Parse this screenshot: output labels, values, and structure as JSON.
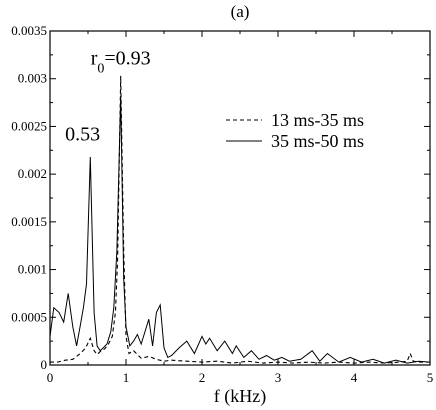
{
  "chart_data": {
    "type": "line",
    "title": "(a)",
    "xlabel": "f (kHz)",
    "ylabel": "",
    "xlim": [
      0,
      5
    ],
    "ylim": [
      0,
      0.0035
    ],
    "grid": false,
    "legend_position": "right",
    "x_ticks": [
      0,
      1,
      2,
      3,
      4,
      5
    ],
    "x_tick_labels": [
      "0",
      "1",
      "2",
      "3",
      "4",
      "5"
    ],
    "y_ticks": [
      0,
      0.0005,
      0.001,
      0.0015,
      0.002,
      0.0025,
      0.003,
      0.0035
    ],
    "y_tick_labels": [
      "0",
      "0.0005",
      "0.001",
      "0.0015",
      "0.002",
      "0.0025",
      "0.003",
      "0.0035"
    ],
    "annotations": [
      {
        "text": "0.53",
        "x": 0.43,
        "y": 0.00235
      },
      {
        "text": "r",
        "sub": "0",
        "suffix": "=0.93",
        "x": 0.93,
        "y": 0.00315
      }
    ],
    "series": [
      {
        "name": "13 ms-35 ms",
        "style": "dashed",
        "x": [
          0.0,
          0.1,
          0.2,
          0.3,
          0.4,
          0.47,
          0.53,
          0.58,
          0.62,
          0.66,
          0.72,
          0.77,
          0.82,
          0.86,
          0.89,
          0.93,
          0.97,
          1.0,
          1.04,
          1.1,
          1.2,
          1.3,
          1.4,
          1.5,
          1.6,
          1.8,
          2.0,
          2.2,
          2.4,
          2.6,
          2.8,
          3.0,
          3.2,
          3.4,
          3.6,
          3.8,
          4.0,
          4.2,
          4.4,
          4.6,
          4.7,
          4.74,
          4.78,
          4.85,
          5.0
        ],
        "y": [
          3e-05,
          3e-05,
          5e-05,
          6e-05,
          0.00012,
          0.00018,
          0.00028,
          0.00015,
          0.00011,
          0.00014,
          0.00017,
          0.00022,
          0.0003,
          0.00055,
          0.0011,
          0.00303,
          0.0012,
          0.0003,
          0.00012,
          0.00015,
          7e-05,
          9e-05,
          6e-05,
          4e-05,
          5e-05,
          4e-05,
          3e-05,
          4e-05,
          2e-05,
          4e-05,
          2e-05,
          3e-05,
          2e-05,
          3e-05,
          2e-05,
          3e-05,
          2e-05,
          3e-05,
          2e-05,
          3e-05,
          4e-05,
          0.00012,
          4e-05,
          3e-05,
          3e-05
        ]
      },
      {
        "name": "35 ms-50 ms",
        "style": "solid",
        "x": [
          0.0,
          0.05,
          0.12,
          0.18,
          0.24,
          0.3,
          0.35,
          0.4,
          0.44,
          0.48,
          0.53,
          0.58,
          0.62,
          0.66,
          0.7,
          0.75,
          0.8,
          0.84,
          0.88,
          0.93,
          0.97,
          1.0,
          1.05,
          1.1,
          1.15,
          1.2,
          1.25,
          1.3,
          1.35,
          1.4,
          1.45,
          1.5,
          1.55,
          1.6,
          1.7,
          1.8,
          1.9,
          2.0,
          2.05,
          2.1,
          2.2,
          2.3,
          2.4,
          2.45,
          2.55,
          2.65,
          2.75,
          2.85,
          2.95,
          3.05,
          3.15,
          3.3,
          3.45,
          3.55,
          3.65,
          3.8,
          3.95,
          4.1,
          4.25,
          4.4,
          4.55,
          4.7,
          4.85,
          5.0
        ],
        "y": [
          0.0003,
          0.0006,
          0.00055,
          0.00045,
          0.00075,
          0.0004,
          0.0002,
          0.00042,
          0.0006,
          0.00085,
          0.00218,
          0.00055,
          0.0002,
          0.00015,
          0.00018,
          0.00022,
          0.00035,
          0.0006,
          0.0012,
          0.00282,
          0.0009,
          0.0004,
          0.0002,
          0.00025,
          0.00032,
          0.00022,
          0.00035,
          0.00048,
          0.0002,
          0.00055,
          0.00063,
          0.00018,
          8e-05,
          0.0001,
          0.00018,
          0.00025,
          0.00012,
          0.0003,
          0.00022,
          0.00028,
          0.00015,
          0.00025,
          0.00012,
          0.0002,
          8e-05,
          0.00015,
          6e-05,
          0.0001,
          5e-05,
          8e-05,
          4e-05,
          6e-05,
          0.00015,
          4e-05,
          0.00012,
          3e-05,
          8e-05,
          3e-05,
          6e-05,
          2e-05,
          5e-05,
          2e-05,
          4e-05,
          3e-05
        ]
      }
    ]
  }
}
